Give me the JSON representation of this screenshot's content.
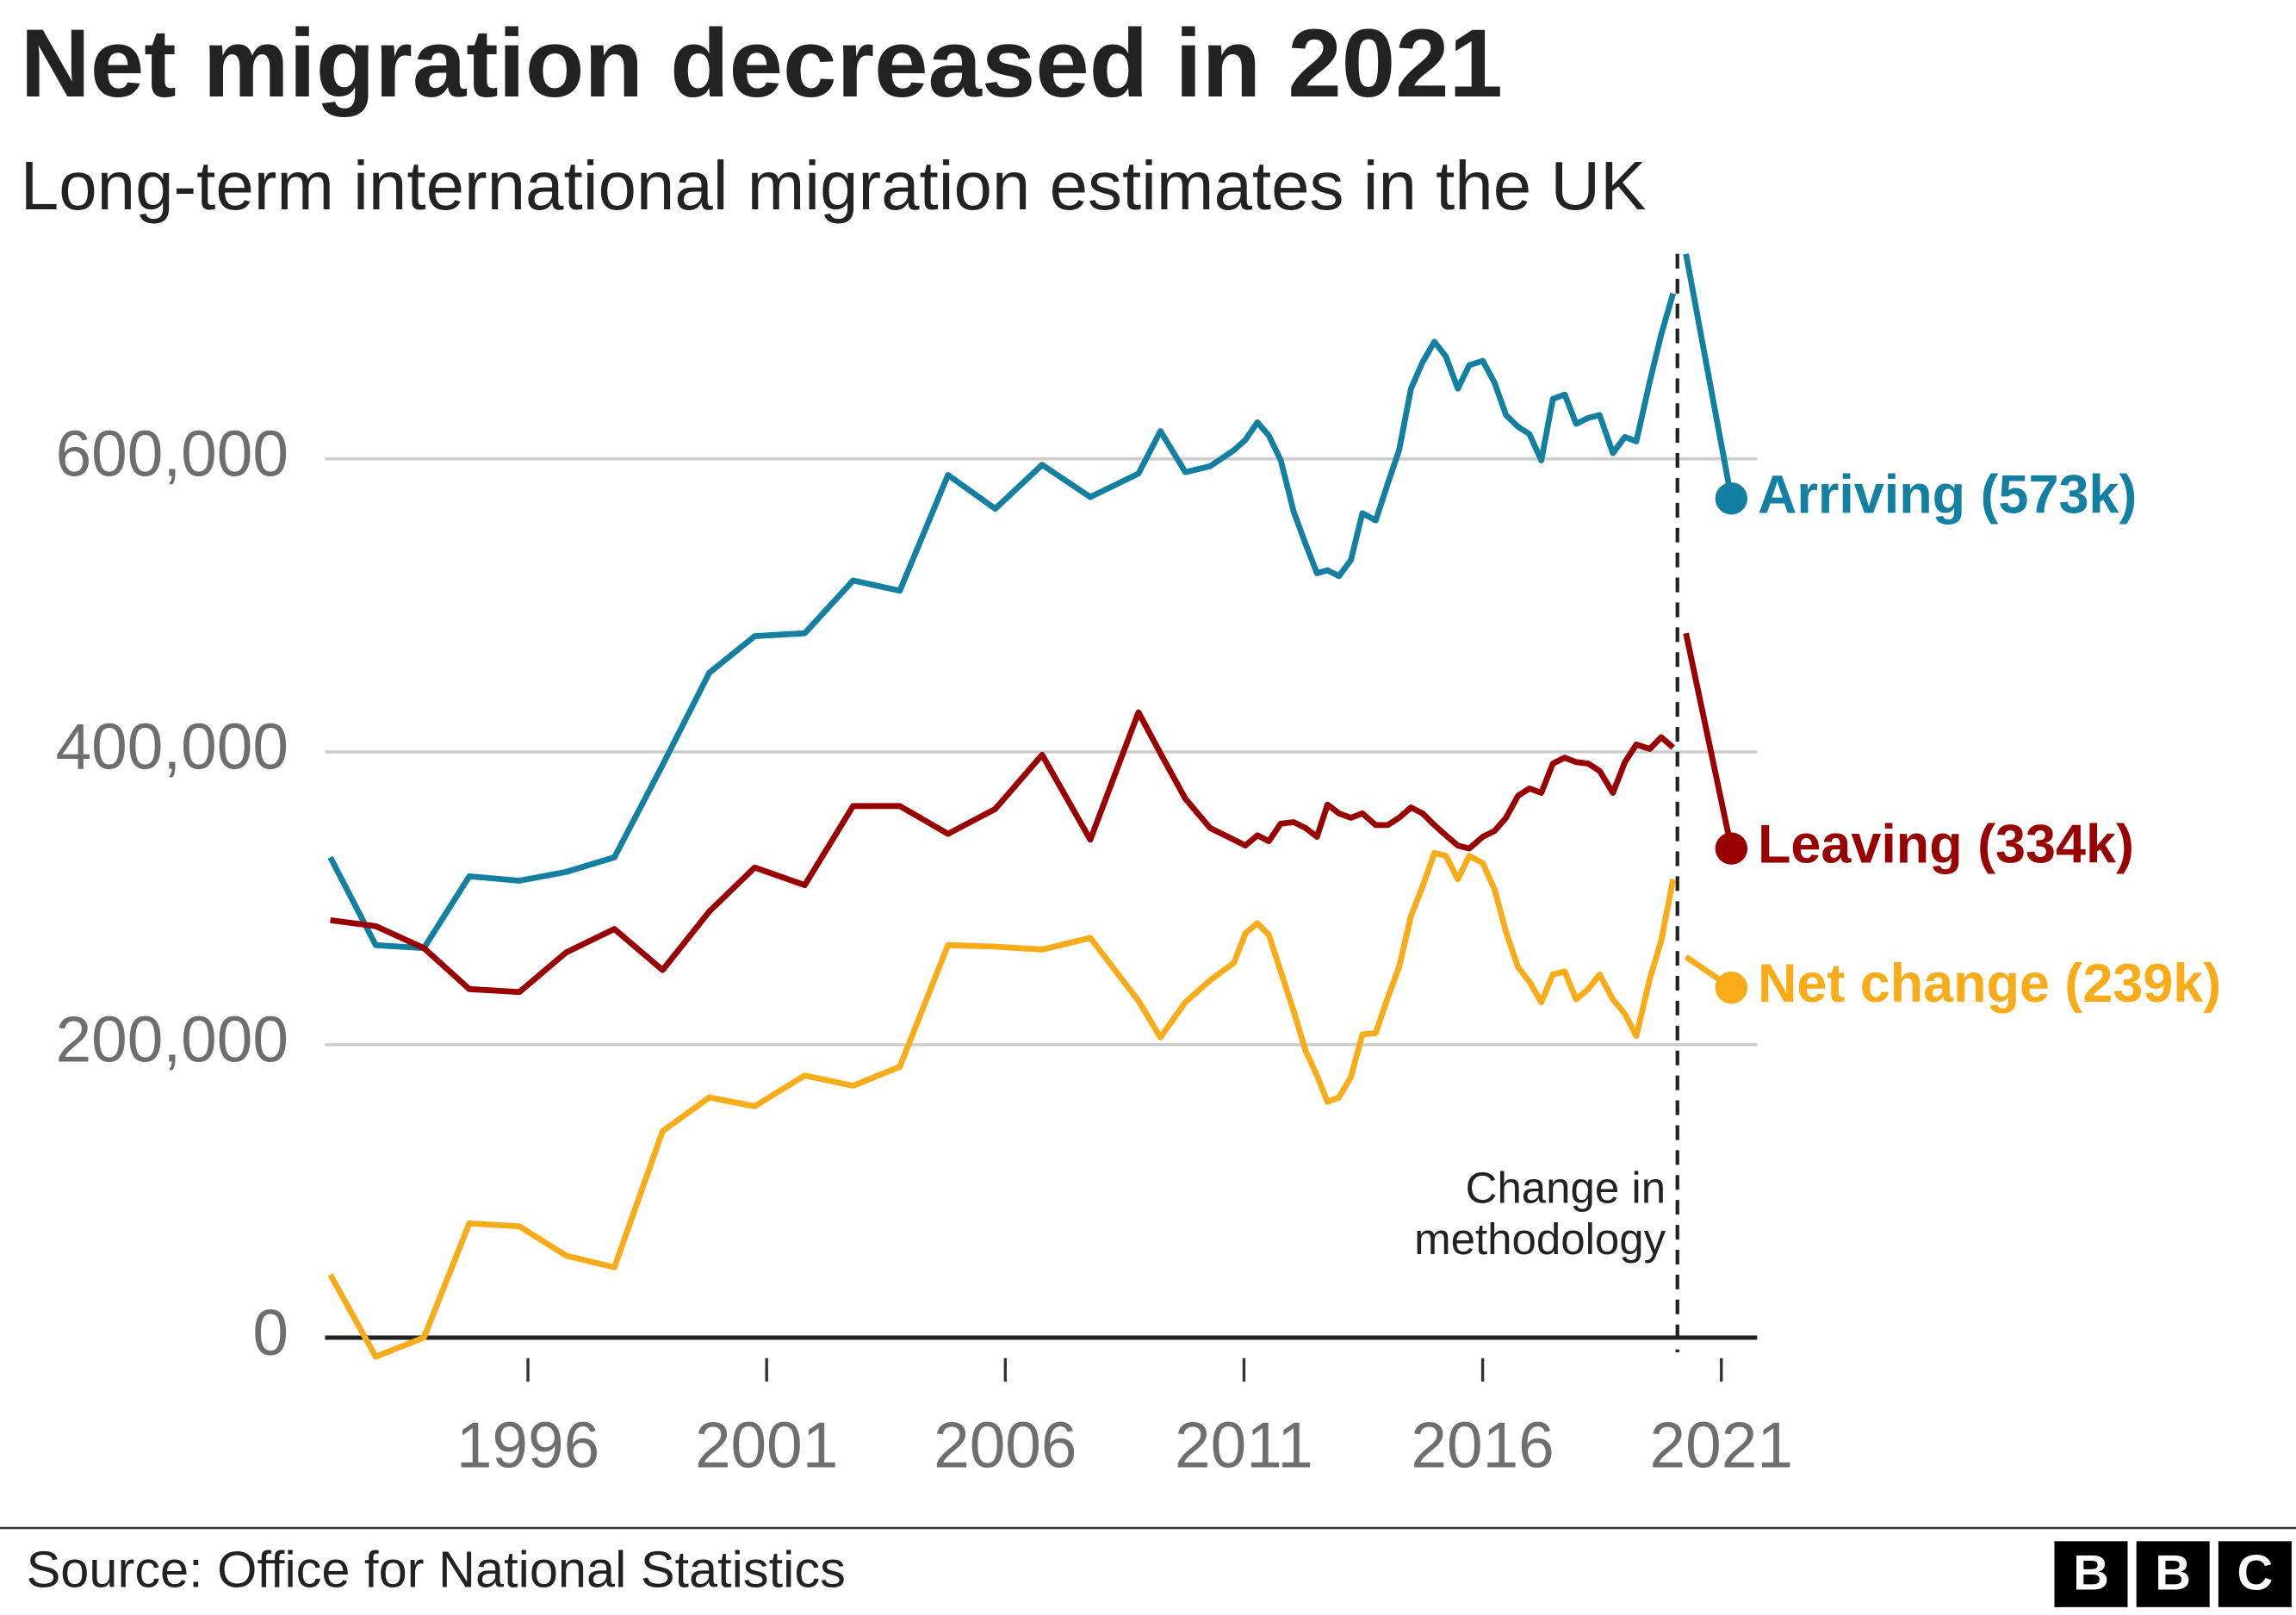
{
  "chart_data": {
    "type": "line",
    "title": "Net migration decreased in 2021",
    "subtitle": "Long-term international migration estimates in the UK",
    "source": "Source: Office for National Statistics",
    "logo": [
      "B",
      "B",
      "C"
    ],
    "x": [
      1991.86,
      1992.81,
      1993.82,
      1994.77,
      1995.82,
      1996.8,
      1997.81,
      1998.82,
      1999.8,
      2000.75,
      2001.8,
      2002.81,
      2003.79,
      2004.8,
      2005.79,
      2006.77,
      2007.78,
      2008.79,
      2009.25,
      2009.77,
      2010.29,
      2010.79,
      2011.03,
      2011.28,
      2011.52,
      2011.77,
      2012.04,
      2012.29,
      2012.53,
      2012.75,
      2012.99,
      2013.24,
      2013.48,
      2013.76,
      2014.01,
      2014.25,
      2014.5,
      2014.74,
      2014.99,
      2015.23,
      2015.48,
      2015.72,
      2016.0,
      2016.25,
      2016.49,
      2016.74,
      2016.98,
      2017.23,
      2017.47,
      2017.72,
      2017.96,
      2018.21,
      2018.45,
      2018.73,
      2018.98,
      2019.22,
      2019.5,
      2019.74,
      2019.99,
      2020.12,
      2020.26,
      2021.21
    ],
    "series": [
      {
        "name": "Arriving (573k)",
        "color": "#1380a1",
        "values": [
          328000,
          268000,
          266000,
          315000,
          312000,
          318000,
          328000,
          391000,
          454000,
          479000,
          481000,
          517000,
          510000,
          589000,
          566000,
          596000,
          574000,
          590000,
          619000,
          591000,
          595000,
          606000,
          613000,
          625000,
          616000,
          599000,
          564000,
          542000,
          522000,
          524000,
          520000,
          531000,
          563000,
          558000,
          583000,
          606000,
          648000,
          666000,
          680000,
          670000,
          648000,
          664000,
          667000,
          652000,
          630000,
          622000,
          617000,
          599000,
          641000,
          644000,
          624000,
          628000,
          630000,
          604000,
          615000,
          612000,
          653000,
          685000,
          713000,
          null,
          740000,
          573000
        ]
      },
      {
        "name": "Leaving (334k)",
        "color": "#990000",
        "values": [
          285000,
          281000,
          266000,
          238000,
          236000,
          263000,
          279000,
          251000,
          291000,
          321000,
          309000,
          363000,
          363000,
          344000,
          361000,
          398000,
          340000,
          427000,
          399000,
          368000,
          348000,
          340000,
          336000,
          343000,
          339000,
          351000,
          352000,
          348000,
          342000,
          364000,
          358000,
          355000,
          358000,
          350000,
          350000,
          355000,
          362000,
          358000,
          350000,
          343000,
          336000,
          334000,
          342000,
          346000,
          355000,
          370000,
          375000,
          372000,
          392000,
          396000,
          393000,
          392000,
          387000,
          372000,
          393000,
          405000,
          402000,
          410000,
          403000,
          null,
          481000,
          334000
        ]
      },
      {
        "name": "Net change (239k)",
        "color": "#faab18",
        "values": [
          43000,
          -13000,
          0,
          78000,
          76000,
          56000,
          48000,
          141000,
          164000,
          158000,
          179000,
          172000,
          185000,
          268000,
          267000,
          265000,
          273000,
          230000,
          205000,
          229000,
          244000,
          256000,
          276000,
          283000,
          275000,
          250000,
          223000,
          196000,
          179000,
          161000,
          164000,
          178000,
          207000,
          208000,
          232000,
          253000,
          288000,
          308000,
          331000,
          329000,
          313000,
          329000,
          324000,
          306000,
          277000,
          253000,
          243000,
          229000,
          248000,
          250000,
          231000,
          238000,
          248000,
          231000,
          221000,
          206000,
          245000,
          271000,
          313000,
          null,
          260000,
          239000
        ]
      }
    ],
    "methodology_change": {
      "x": 2020.08,
      "label": [
        "Change in",
        "methodology"
      ]
    },
    "xlim": [
      1991.75,
      2021.75
    ],
    "xticks": [
      1996,
      2001,
      2006,
      2011,
      2016,
      2021
    ],
    "ylim": [
      0,
      740000
    ],
    "yticks": [
      0,
      {
        "value": 200000,
        "label": "200,000"
      },
      {
        "value": 400000,
        "label": "400,000"
      },
      {
        "value": 600000,
        "label": "600,000"
      }
    ],
    "grid": true
  }
}
